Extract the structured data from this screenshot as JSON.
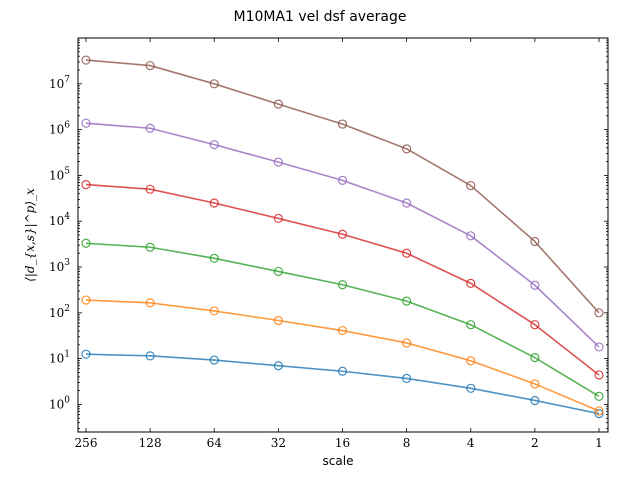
{
  "chart_data": {
    "type": "line",
    "title": "M10MA1 vel dsf average",
    "xlabel": "scale",
    "ylabel": "⟨|d_{x,s}|^p⟩_x",
    "x": [
      256,
      128,
      64,
      32,
      16,
      8,
      4,
      2,
      1
    ],
    "x_ticklabels": [
      "256",
      "128",
      "64",
      "32",
      "16",
      "8",
      "4",
      "2",
      "1"
    ],
    "x_scale": "log2",
    "x_direction": "decreasing",
    "y_scale": "log",
    "ylim": [
      0.25,
      100000000
    ],
    "y_ticks": [
      1,
      10,
      100,
      1000,
      10000,
      100000,
      1000000,
      10000000
    ],
    "y_ticklabel_base": "10",
    "y_ticklabel_exponents": [
      "0",
      "1",
      "2",
      "3",
      "4",
      "5",
      "6",
      "7"
    ],
    "grid": false,
    "marker": "open-circle",
    "series": [
      {
        "color": "#1f77b4",
        "values": [
          12.5,
          11.5,
          9.3,
          7.0,
          5.3,
          3.7,
          2.25,
          1.22,
          0.63
        ]
      },
      {
        "color": "#ff7f0e",
        "values": [
          190,
          165,
          110,
          68,
          41,
          22,
          9.0,
          2.8,
          0.72
        ]
      },
      {
        "color": "#2ca02c",
        "values": [
          3300,
          2700,
          1550,
          800,
          410,
          180,
          55,
          10.5,
          1.5
        ]
      },
      {
        "color": "#d62728",
        "values": [
          63000,
          50000,
          25000,
          11500,
          5200,
          2000,
          440,
          55,
          4.4
        ]
      },
      {
        "color": "#9467bd",
        "values": [
          1380000,
          1070000,
          470000,
          195000,
          78000,
          25000,
          4800,
          400,
          18
        ]
      },
      {
        "color": "#8c564b",
        "values": [
          33000000,
          25000000,
          10000000,
          3600000,
          1320000,
          380000,
          60000,
          3600,
          100
        ]
      }
    ]
  }
}
